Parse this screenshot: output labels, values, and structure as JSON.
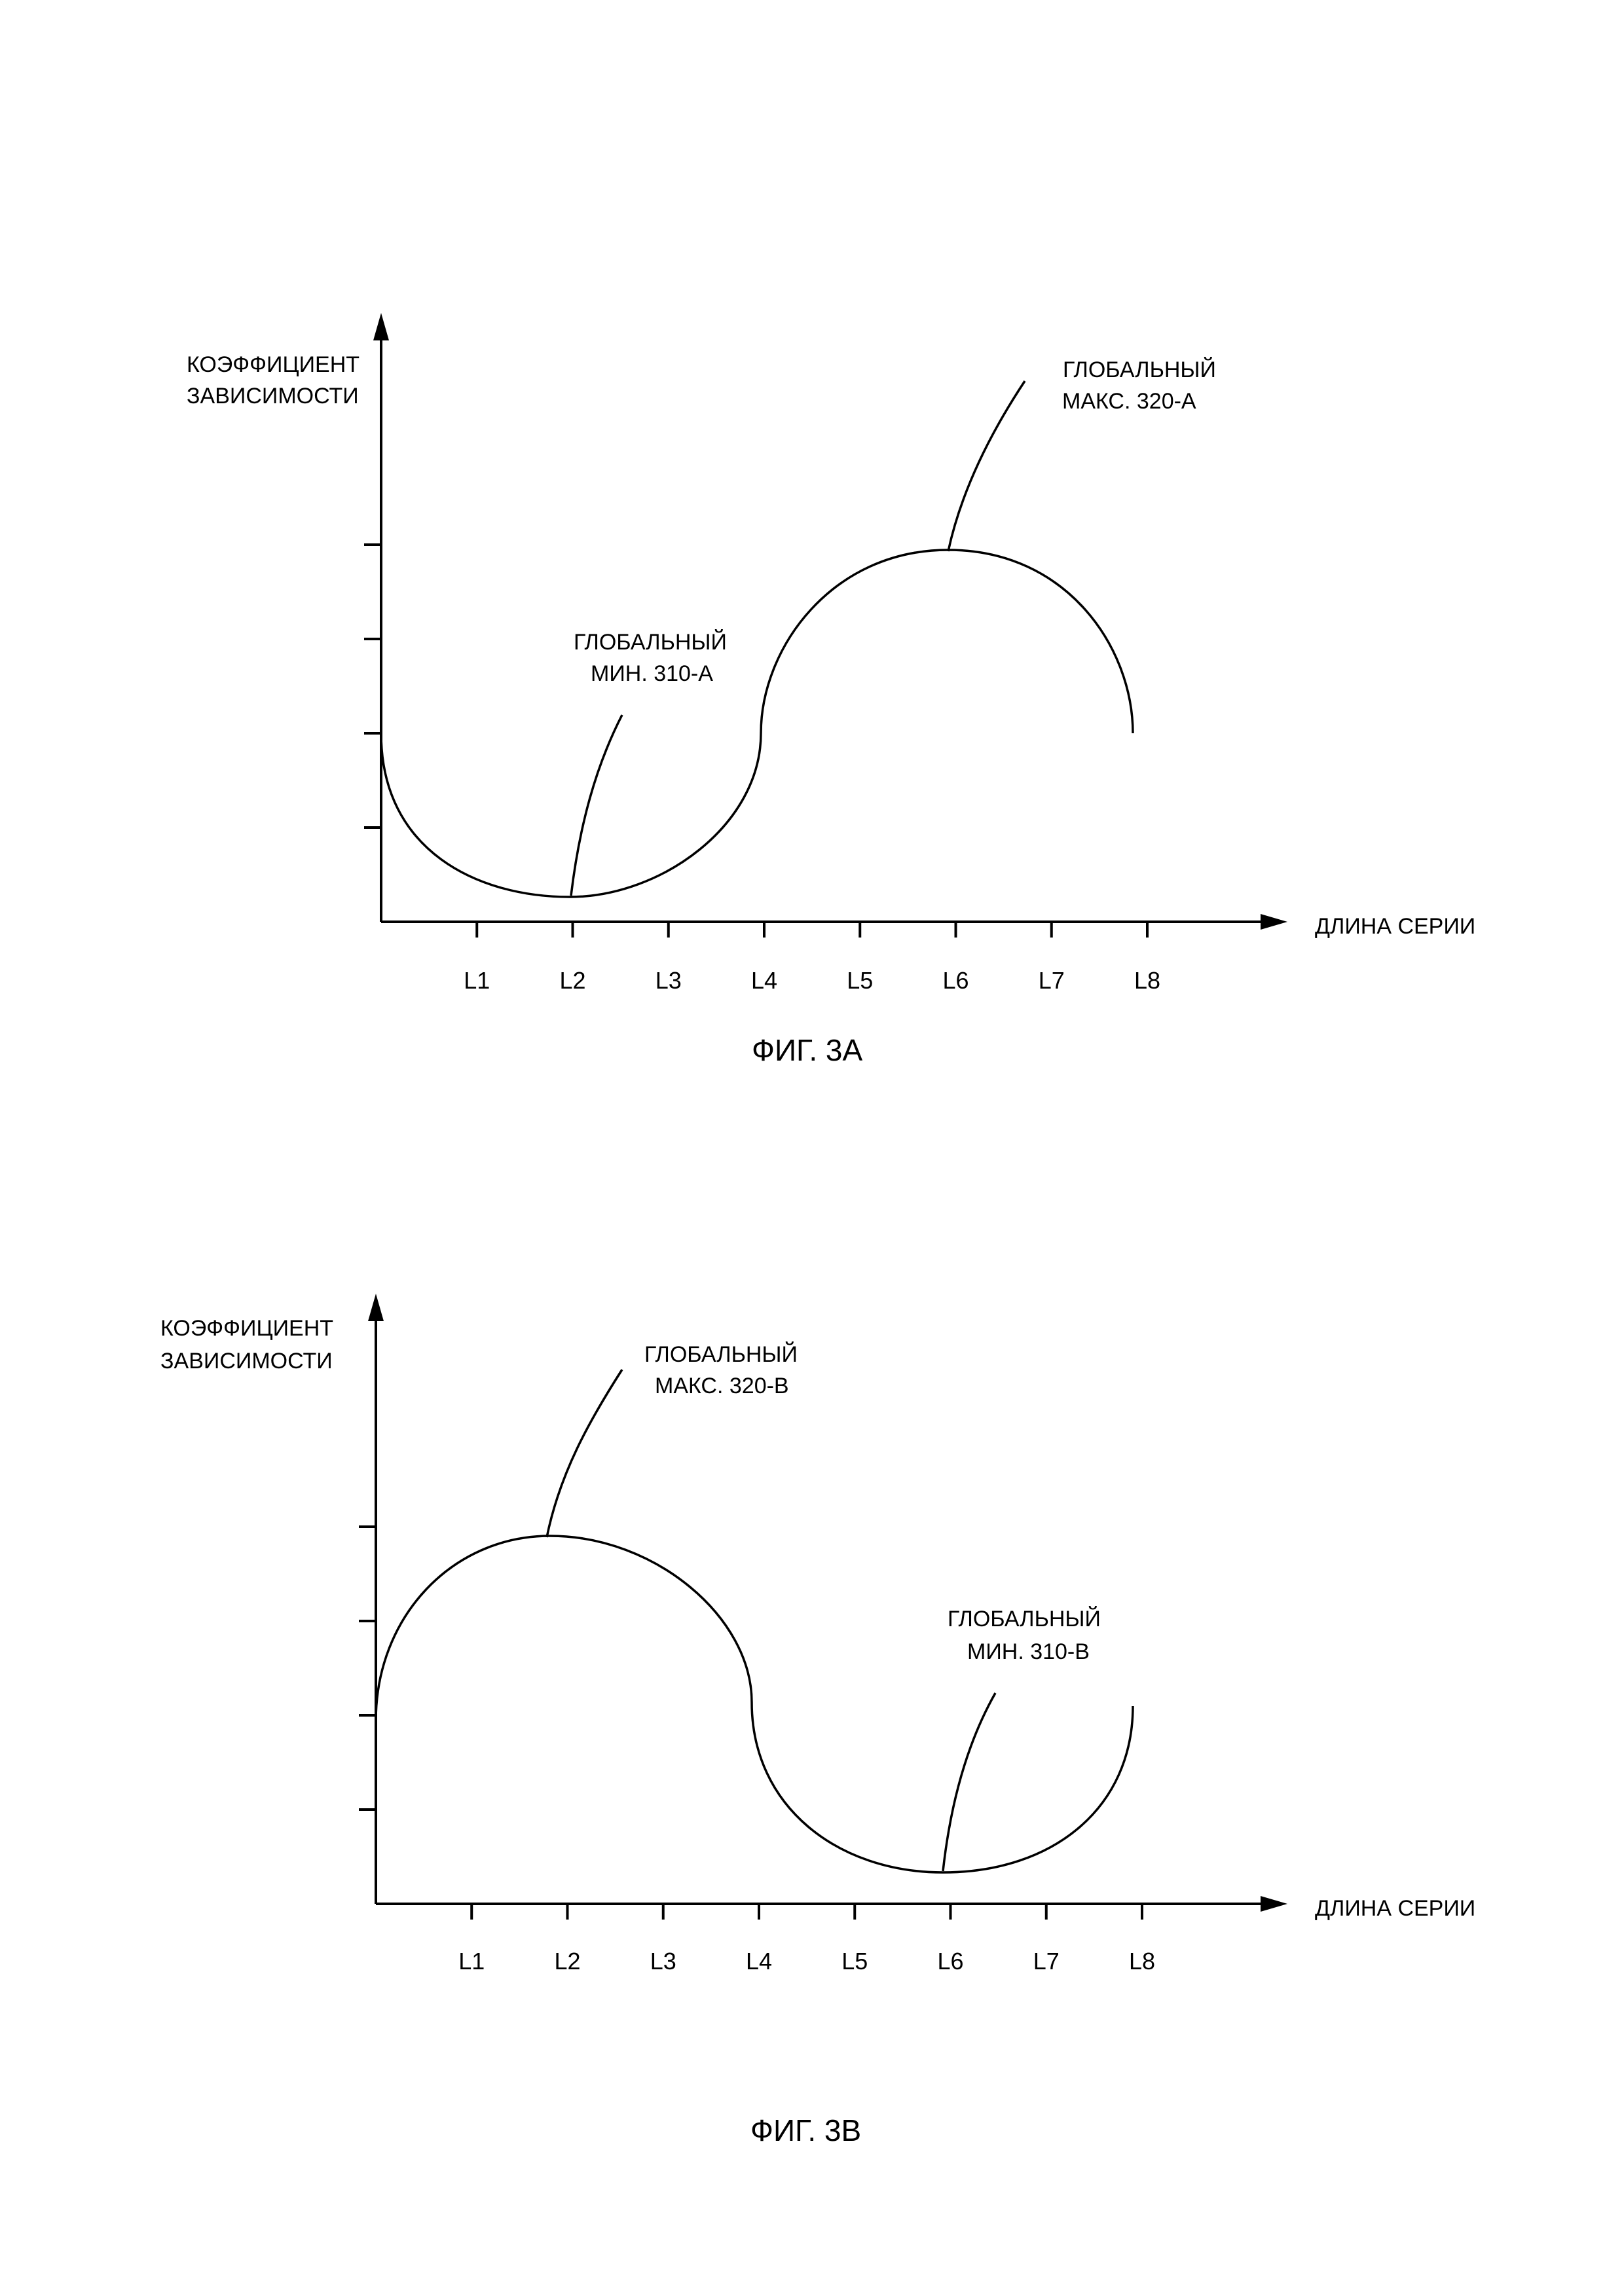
{
  "chart_data": [
    {
      "type": "line",
      "figure_label": "ФИГ. 3А",
      "ylabel": [
        "КОЭФФИЦИЕНТ",
        "ЗАВИСИМОСТИ"
      ],
      "xlabel": "ДЛИНА СЕРИИ",
      "categories": [
        "L1",
        "L2",
        "L3",
        "L4",
        "L5",
        "L6",
        "L7",
        "L8"
      ],
      "x": [
        0,
        1,
        2,
        3,
        4,
        5,
        6,
        7,
        8
      ],
      "y": [
        2,
        0.6,
        0.25,
        0.6,
        2,
        3.5,
        3.95,
        3.3,
        2
      ],
      "ylim": [
        0,
        5
      ],
      "y_ticks": [
        1,
        2,
        3,
        4
      ],
      "grid": false,
      "annotations": [
        {
          "text": [
            "ГЛОБАЛЬНЫЙ",
            "МИН. 310-А"
          ],
          "x": 2,
          "y": 0.25
        },
        {
          "text": [
            "ГЛОБАЛЬНЫЙ",
            "МАКС. 320-А"
          ],
          "x": 6,
          "y": 3.95
        }
      ]
    },
    {
      "type": "line",
      "figure_label": "ФИГ. 3В",
      "ylabel": [
        "КОЭФФИЦИЕНТ",
        "ЗАВИСИМОСТИ"
      ],
      "xlabel": "ДЛИНА СЕРИИ",
      "categories": [
        "L1",
        "L2",
        "L3",
        "L4",
        "L5",
        "L6",
        "L7",
        "L8"
      ],
      "x": [
        0,
        1,
        1.8,
        3,
        4,
        5,
        6,
        7,
        8
      ],
      "y": [
        2,
        3.4,
        3.95,
        3.4,
        2,
        0.6,
        0.35,
        0.8,
        2
      ],
      "ylim": [
        0,
        5
      ],
      "y_ticks": [
        1,
        2,
        3,
        4
      ],
      "grid": false,
      "annotations": [
        {
          "text": [
            "ГЛОБАЛЬНЫЙ",
            "МАКС. 320-В"
          ],
          "x": 1.8,
          "y": 3.95
        },
        {
          "text": [
            "ГЛОБАЛЬНЫЙ",
            "МИН. 310-В"
          ],
          "x": 6,
          "y": 0.35
        }
      ]
    }
  ]
}
